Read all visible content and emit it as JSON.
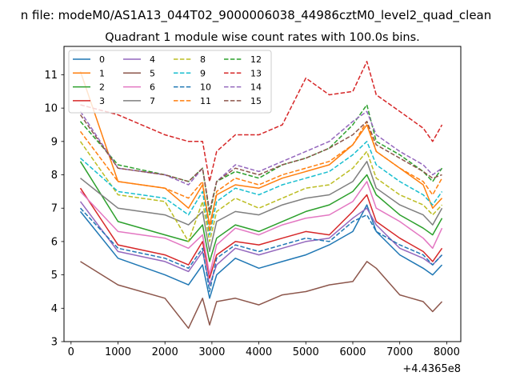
{
  "figure": {
    "suptitle": "n file: modeM0/AS1A13_044T02_9000006038_44986cztM0_level2_quad_clean",
    "offset_text": "+4.4365e8"
  },
  "chart_data": {
    "type": "line",
    "title": "Quadrant 1 module wise count rates with 100.0s bins.",
    "xlabel": "",
    "ylabel": "",
    "xlim": [
      -150,
      8300
    ],
    "ylim": [
      3,
      11.85
    ],
    "xticks": [
      0,
      1000,
      2000,
      3000,
      4000,
      5000,
      6000,
      7000,
      8000
    ],
    "xtick_labels": [
      "0",
      "1000",
      "2000",
      "3000",
      "4000",
      "5000",
      "6000",
      "7000",
      "8000"
    ],
    "yticks": [
      3,
      4,
      5,
      6,
      7,
      8,
      9,
      10,
      11
    ],
    "ytick_labels": [
      "3",
      "4",
      "5",
      "6",
      "7",
      "8",
      "9",
      "10",
      "11"
    ],
    "grid": false,
    "legend": {
      "position": "upper-left",
      "columns": 4
    },
    "x_offset": 443650000,
    "x": [
      200,
      1000,
      2000,
      2500,
      2800,
      2950,
      3100,
      3500,
      4000,
      4500,
      5000,
      5500,
      6000,
      6300,
      6500,
      7000,
      7500,
      7700,
      7900
    ],
    "series": [
      {
        "name": "0",
        "color": "#1f77b4",
        "dash": "solid",
        "values": [
          6.9,
          5.5,
          5.0,
          4.7,
          5.3,
          4.3,
          5.0,
          5.5,
          5.2,
          5.4,
          5.6,
          5.9,
          6.3,
          7.1,
          6.3,
          5.6,
          5.2,
          5.0,
          5.3
        ]
      },
      {
        "name": "1",
        "color": "#ff7f0e",
        "dash": "solid",
        "values": [
          11.1,
          7.8,
          7.6,
          7.0,
          7.7,
          6.5,
          7.4,
          7.7,
          7.6,
          7.9,
          8.1,
          8.3,
          8.9,
          9.5,
          8.7,
          8.2,
          7.7,
          7.0,
          7.3
        ]
      },
      {
        "name": "2",
        "color": "#2ca02c",
        "dash": "solid",
        "values": [
          8.4,
          6.6,
          6.2,
          6.0,
          6.5,
          5.4,
          6.1,
          6.5,
          6.3,
          6.6,
          6.9,
          7.1,
          7.5,
          8.0,
          7.4,
          6.8,
          6.4,
          6.2,
          6.7
        ]
      },
      {
        "name": "3",
        "color": "#d62728",
        "dash": "solid",
        "values": [
          7.6,
          5.9,
          5.6,
          5.3,
          6.0,
          4.9,
          5.6,
          6.0,
          5.9,
          6.1,
          6.3,
          6.2,
          6.9,
          7.4,
          6.6,
          6.1,
          5.7,
          5.4,
          5.8
        ]
      },
      {
        "name": "4",
        "color": "#9467bd",
        "dash": "solid",
        "values": [
          7.2,
          5.7,
          5.4,
          5.1,
          5.7,
          4.7,
          5.3,
          5.8,
          5.6,
          5.8,
          6.0,
          6.1,
          6.7,
          7.0,
          6.5,
          5.8,
          5.5,
          5.3,
          5.6
        ]
      },
      {
        "name": "5",
        "color": "#8c564b",
        "dash": "solid",
        "values": [
          5.4,
          4.7,
          4.3,
          3.4,
          4.3,
          3.5,
          4.2,
          4.3,
          4.1,
          4.4,
          4.5,
          4.7,
          4.8,
          5.4,
          5.2,
          4.4,
          4.2,
          3.9,
          4.2
        ]
      },
      {
        "name": "6",
        "color": "#e377c2",
        "dash": "solid",
        "values": [
          7.5,
          6.3,
          6.1,
          5.8,
          6.2,
          5.0,
          5.9,
          6.4,
          6.2,
          6.5,
          6.7,
          6.8,
          7.2,
          7.8,
          7.0,
          6.6,
          6.1,
          5.8,
          6.4
        ]
      },
      {
        "name": "7",
        "color": "#7f7f7f",
        "dash": "solid",
        "values": [
          7.9,
          7.0,
          6.8,
          6.5,
          6.9,
          5.7,
          6.6,
          6.9,
          6.8,
          7.1,
          7.3,
          7.4,
          7.8,
          8.4,
          7.6,
          7.1,
          6.8,
          6.5,
          7.0
        ]
      },
      {
        "name": "8",
        "color": "#bcbd22",
        "dash": "dashed",
        "values": [
          9.0,
          7.4,
          7.2,
          6.0,
          7.2,
          6.0,
          6.9,
          7.3,
          7.0,
          7.3,
          7.6,
          7.7,
          8.2,
          8.7,
          7.9,
          7.4,
          7.1,
          6.8,
          7.1
        ]
      },
      {
        "name": "9",
        "color": "#17becf",
        "dash": "dashed",
        "values": [
          8.5,
          7.5,
          7.3,
          6.8,
          7.5,
          6.2,
          7.2,
          7.6,
          7.4,
          7.7,
          7.9,
          8.1,
          8.6,
          9.0,
          8.3,
          7.8,
          7.4,
          7.1,
          7.5
        ]
      },
      {
        "name": "10",
        "color": "#1f77b4",
        "dash": "dashed",
        "values": [
          7.0,
          5.8,
          5.5,
          5.2,
          5.8,
          4.5,
          5.5,
          5.9,
          5.7,
          5.9,
          6.1,
          6.0,
          6.6,
          6.8,
          6.3,
          5.9,
          5.6,
          5.3,
          5.6
        ]
      },
      {
        "name": "11",
        "color": "#ff7f0e",
        "dash": "dashed",
        "values": [
          9.3,
          7.8,
          7.6,
          7.3,
          7.8,
          6.3,
          7.5,
          7.9,
          7.7,
          8.0,
          8.2,
          8.4,
          8.9,
          9.6,
          8.7,
          8.2,
          7.8,
          7.4,
          7.9
        ]
      },
      {
        "name": "12",
        "color": "#2ca02c",
        "dash": "dashed",
        "values": [
          9.6,
          8.3,
          8.0,
          7.8,
          8.2,
          6.8,
          7.8,
          8.1,
          7.9,
          8.3,
          8.5,
          8.8,
          9.5,
          10.1,
          9.0,
          8.6,
          8.1,
          7.8,
          8.2
        ]
      },
      {
        "name": "13",
        "color": "#d62728",
        "dash": "dashed",
        "values": [
          10.1,
          9.8,
          9.2,
          9.0,
          9.0,
          7.8,
          8.7,
          9.2,
          9.2,
          9.5,
          10.9,
          10.4,
          10.5,
          11.4,
          10.4,
          9.9,
          9.4,
          9.0,
          9.5
        ]
      },
      {
        "name": "14",
        "color": "#9467bd",
        "dash": "dashed",
        "values": [
          9.9,
          8.2,
          8.0,
          7.7,
          8.2,
          6.9,
          7.8,
          8.3,
          8.1,
          8.4,
          8.7,
          9.0,
          9.6,
          9.9,
          9.2,
          8.7,
          8.3,
          8.0,
          8.2
        ]
      },
      {
        "name": "15",
        "color": "#8c564b",
        "dash": "dashed",
        "values": [
          9.8,
          8.2,
          8.0,
          7.8,
          8.2,
          6.9,
          7.8,
          8.2,
          8.0,
          8.3,
          8.5,
          8.8,
          9.2,
          9.6,
          8.9,
          8.5,
          8.1,
          7.9,
          8.0
        ]
      }
    ]
  }
}
